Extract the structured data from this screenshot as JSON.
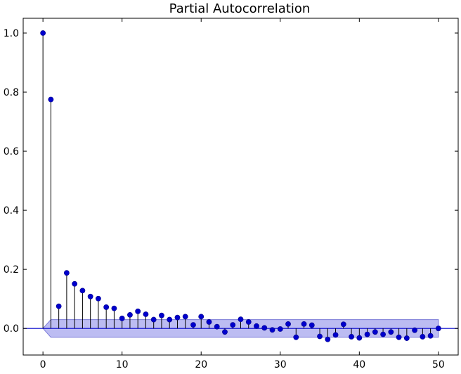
{
  "chart_data": {
    "type": "stem",
    "title": "Partial Autocorrelation",
    "xlabel": "",
    "ylabel": "",
    "xlim": [
      -2.5,
      52.5
    ],
    "ylim": [
      -0.09,
      1.05
    ],
    "xticks": [
      0,
      10,
      20,
      30,
      40,
      50
    ],
    "yticks": [
      0.0,
      0.2,
      0.4,
      0.6,
      0.8,
      1.0
    ],
    "xtick_labels": [
      "0",
      "10",
      "20",
      "30",
      "40",
      "50"
    ],
    "ytick_labels": [
      "0.0",
      "0.2",
      "0.4",
      "0.6",
      "0.8",
      "1.0"
    ],
    "grid": false,
    "lags": [
      0,
      1,
      2,
      3,
      4,
      5,
      6,
      7,
      8,
      9,
      10,
      11,
      12,
      13,
      14,
      15,
      16,
      17,
      18,
      19,
      20,
      21,
      22,
      23,
      24,
      25,
      26,
      27,
      28,
      29,
      30,
      31,
      32,
      33,
      34,
      35,
      36,
      37,
      38,
      39,
      40,
      41,
      42,
      43,
      44,
      45,
      46,
      47,
      48,
      49,
      50
    ],
    "values": [
      1.0,
      0.775,
      0.075,
      0.188,
      0.151,
      0.128,
      0.108,
      0.101,
      0.072,
      0.068,
      0.034,
      0.046,
      0.058,
      0.048,
      0.03,
      0.044,
      0.03,
      0.037,
      0.04,
      0.012,
      0.04,
      0.022,
      0.006,
      -0.012,
      0.012,
      0.031,
      0.022,
      0.008,
      0.002,
      -0.005,
      -0.002,
      0.015,
      -0.03,
      0.015,
      0.011,
      -0.027,
      -0.037,
      -0.022,
      0.014,
      -0.028,
      -0.032,
      -0.02,
      -0.012,
      -0.02,
      -0.012,
      -0.03,
      -0.033,
      -0.006,
      -0.028,
      -0.025,
      0.0
    ],
    "confidence_band": {
      "lags": [
        0,
        1,
        50
      ],
      "upper": [
        0.0,
        0.03,
        0.03
      ],
      "lower": [
        0.0,
        -0.03,
        -0.03
      ]
    },
    "colors": {
      "marker": "#0000cc",
      "stem": "#000000",
      "zero_line": "#0000cc",
      "band_fill": "#b0b0f0",
      "band_edge": "#7a7ad8"
    }
  }
}
